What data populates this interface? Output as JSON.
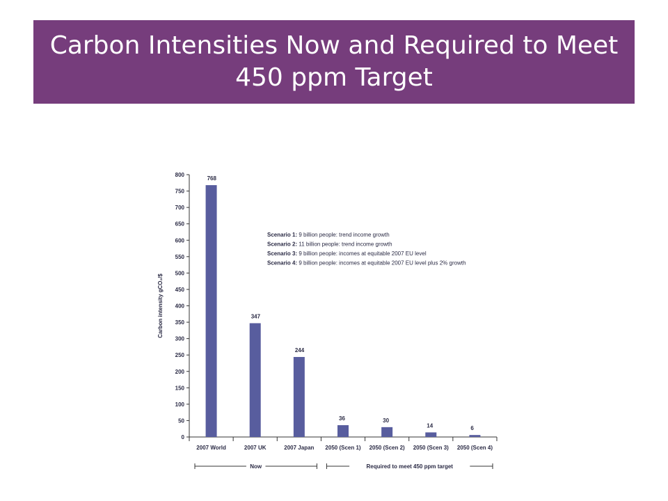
{
  "slide": {
    "title_line1": "Carbon Intensities Now and Required to Meet",
    "title_line2": "450 ppm Target",
    "banner_color": "#763d7c"
  },
  "chart_data": {
    "type": "bar",
    "categories": [
      "2007 World",
      "2007 UK",
      "2007 Japan",
      "2050 (Scen 1)",
      "2050 (Scen 2)",
      "2050 (Scen 3)",
      "2050 (Scen 4)"
    ],
    "values": [
      768,
      347,
      244,
      36,
      30,
      14,
      6
    ],
    "data_labels": [
      "768",
      "347",
      "244",
      "36",
      "30",
      "14",
      "6"
    ],
    "ylabel": "Carbon intensity gCO₂/$",
    "ylim": [
      0,
      800
    ],
    "yticks": [
      0,
      50,
      100,
      150,
      200,
      250,
      300,
      350,
      400,
      450,
      500,
      550,
      600,
      650,
      700,
      750,
      800
    ],
    "bar_color": "#585d9e",
    "grid": false,
    "notes": [
      {
        "label": "Scenario 1:",
        "text": " 9 billion people: trend income growth"
      },
      {
        "label": "Scenario 2:",
        "text": " 11 billion people: trend income growth"
      },
      {
        "label": "Scenario 3:",
        "text": " 9 billion people: incomes at equitable 2007 EU level"
      },
      {
        "label": "Scenario 4:",
        "text": " 9 billion people: incomes at equitable 2007 EU level plus 2% growth"
      }
    ],
    "groups": [
      {
        "label": "Now",
        "from": 0,
        "to": 2
      },
      {
        "label": "Required to meet 450 ppm target",
        "from": 3,
        "to": 6
      }
    ]
  }
}
